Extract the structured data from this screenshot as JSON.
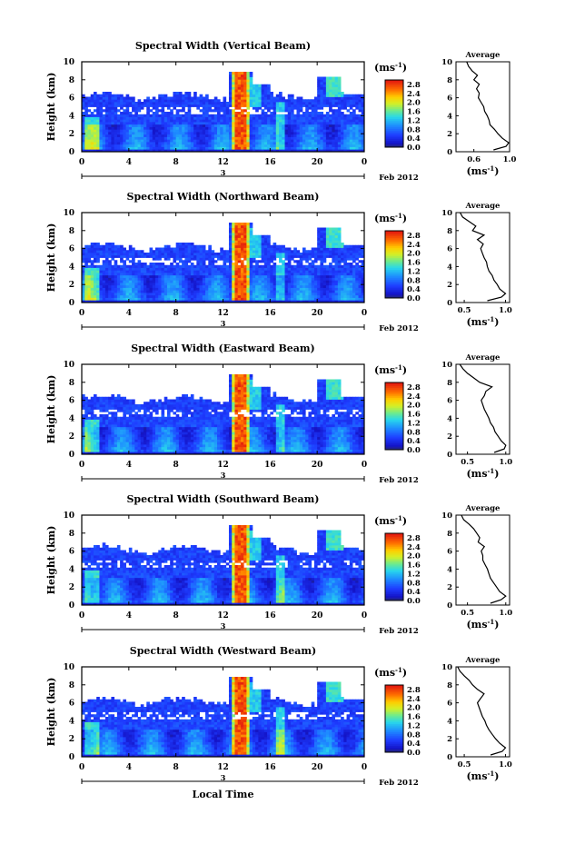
{
  "figure": {
    "xlabel": "Local Time",
    "date_label": "Feb 2012",
    "day_label": "3",
    "ylabel": "Height (km)",
    "colorbar_unit": "(ms",
    "colorbar_unit_exp": "-1",
    "avg_title": "Average",
    "avg_unit": "(ms",
    "avg_unit_exp": "-1",
    "avg_unit_close": ")"
  },
  "chart_data": [
    {
      "type": "heatmap",
      "title": "Spectral Width (Vertical Beam)",
      "ylabel": "Height (km)",
      "x_ticks": [
        "0",
        "4",
        "8",
        "12",
        "16",
        "20",
        "0"
      ],
      "y_ticks": [
        "0",
        "2",
        "4",
        "6",
        "8",
        "10"
      ],
      "ylim": [
        0,
        10
      ],
      "xlim": [
        0,
        24
      ],
      "colorbar_ticks": [
        "0.0",
        "0.4",
        "0.8",
        "1.2",
        "1.6",
        "2.0",
        "2.4",
        "2.8"
      ],
      "colorbar_range": [
        0,
        3.0
      ],
      "profile": {
        "title": "Average",
        "x_ticks": [
          "0.6",
          "1.0"
        ],
        "y_ticks": [
          "0",
          "2",
          "4",
          "6",
          "8",
          "10"
        ],
        "xlim": [
          0.4,
          1.0
        ],
        "height_km": [
          0.2,
          0.6,
          1.0,
          1.5,
          2.0,
          2.5,
          3.0,
          3.5,
          4.0,
          4.5,
          5.0,
          5.5,
          6.0,
          6.5,
          7.0,
          7.5,
          8.0,
          8.5,
          9.0,
          9.5,
          10.0
        ],
        "mean_width": [
          0.82,
          0.96,
          0.99,
          0.92,
          0.87,
          0.83,
          0.78,
          0.77,
          0.75,
          0.72,
          0.71,
          0.68,
          0.65,
          0.66,
          0.63,
          0.66,
          0.6,
          0.64,
          0.58,
          0.54,
          0.52
        ]
      }
    },
    {
      "type": "heatmap",
      "title": "Spectral Width (Northward Beam)",
      "ylabel": "Height (km)",
      "x_ticks": [
        "0",
        "4",
        "8",
        "12",
        "16",
        "20",
        "0"
      ],
      "y_ticks": [
        "0",
        "2",
        "4",
        "6",
        "8",
        "10"
      ],
      "ylim": [
        0,
        10
      ],
      "xlim": [
        0,
        24
      ],
      "colorbar_ticks": [
        "0.0",
        "0.4",
        "0.8",
        "1.2",
        "1.6",
        "2.0",
        "2.4",
        "2.8"
      ],
      "colorbar_range": [
        0,
        3.0
      ],
      "profile": {
        "title": "Average",
        "x_ticks": [
          "0.5",
          "1.0"
        ],
        "y_ticks": [
          "0",
          "2",
          "4",
          "6",
          "8",
          "10"
        ],
        "xlim": [
          0.4,
          1.05
        ],
        "height_km": [
          0.2,
          0.6,
          1.0,
          1.5,
          2.0,
          2.5,
          3.0,
          3.5,
          4.0,
          4.5,
          5.0,
          5.5,
          6.0,
          6.5,
          7.0,
          7.5,
          8.0,
          8.5,
          9.0,
          9.5,
          10.0
        ],
        "mean_width": [
          0.78,
          0.95,
          1.0,
          0.93,
          0.9,
          0.86,
          0.84,
          0.8,
          0.78,
          0.77,
          0.74,
          0.72,
          0.7,
          0.73,
          0.66,
          0.74,
          0.6,
          0.64,
          0.56,
          0.48,
          0.45
        ]
      }
    },
    {
      "type": "heatmap",
      "title": "Spectral Width (Eastward Beam)",
      "ylabel": "Height (km)",
      "x_ticks": [
        "0",
        "4",
        "8",
        "12",
        "16",
        "20",
        "0"
      ],
      "y_ticks": [
        "0",
        "2",
        "4",
        "6",
        "8",
        "10"
      ],
      "ylim": [
        0,
        10
      ],
      "xlim": [
        0,
        24
      ],
      "colorbar_ticks": [
        "0.0",
        "0.4",
        "0.8",
        "1.2",
        "1.6",
        "2.0",
        "2.4",
        "2.8"
      ],
      "colorbar_range": [
        0,
        3.0
      ],
      "profile": {
        "title": "Average",
        "x_ticks": [
          "0.5",
          "1.0"
        ],
        "y_ticks": [
          "0",
          "2",
          "4",
          "6",
          "8",
          "10"
        ],
        "xlim": [
          0.35,
          1.05
        ],
        "height_km": [
          0.2,
          0.6,
          1.0,
          1.5,
          2.0,
          2.5,
          3.0,
          3.5,
          4.0,
          4.5,
          5.0,
          5.5,
          6.0,
          6.5,
          7.0,
          7.5,
          8.0,
          8.5,
          9.0,
          9.5,
          10.0
        ],
        "mean_width": [
          0.85,
          0.98,
          1.0,
          0.94,
          0.9,
          0.86,
          0.84,
          0.8,
          0.78,
          0.75,
          0.72,
          0.7,
          0.68,
          0.72,
          0.74,
          0.82,
          0.66,
          0.58,
          0.5,
          0.44,
          0.4
        ]
      }
    },
    {
      "type": "heatmap",
      "title": "Spectral Width (Southward Beam)",
      "ylabel": "Height (km)",
      "x_ticks": [
        "0",
        "4",
        "8",
        "12",
        "16",
        "20",
        "0"
      ],
      "y_ticks": [
        "0",
        "2",
        "4",
        "6",
        "8",
        "10"
      ],
      "ylim": [
        0,
        10
      ],
      "xlim": [
        0,
        24
      ],
      "colorbar_ticks": [
        "0.0",
        "0.4",
        "0.8",
        "1.2",
        "1.6",
        "2.0",
        "2.4",
        "2.8"
      ],
      "colorbar_range": [
        0,
        3.0
      ],
      "profile": {
        "title": "Average",
        "x_ticks": [
          "0.5",
          "1.0"
        ],
        "y_ticks": [
          "0",
          "2",
          "4",
          "6",
          "8",
          "10"
        ],
        "xlim": [
          0.35,
          1.05
        ],
        "height_km": [
          0.2,
          0.6,
          1.0,
          1.5,
          2.0,
          2.5,
          3.0,
          3.5,
          4.0,
          4.5,
          5.0,
          5.5,
          6.0,
          6.5,
          7.0,
          7.5,
          8.0,
          8.5,
          9.0,
          9.5,
          10.0
        ],
        "mean_width": [
          0.8,
          0.94,
          1.0,
          0.92,
          0.88,
          0.84,
          0.8,
          0.78,
          0.76,
          0.73,
          0.7,
          0.7,
          0.68,
          0.72,
          0.64,
          0.66,
          0.62,
          0.58,
          0.52,
          0.45,
          0.42
        ]
      }
    },
    {
      "type": "heatmap",
      "title": "Spectral Width (Westward Beam)",
      "ylabel": "Height (km)",
      "x_ticks": [
        "0",
        "4",
        "8",
        "12",
        "16",
        "20",
        "0"
      ],
      "y_ticks": [
        "0",
        "2",
        "4",
        "6",
        "8",
        "10"
      ],
      "ylim": [
        0,
        10
      ],
      "xlim": [
        0,
        24
      ],
      "colorbar_ticks": [
        "0.0",
        "0.4",
        "0.8",
        "1.2",
        "1.6",
        "2.0",
        "2.4",
        "2.8"
      ],
      "colorbar_range": [
        0,
        3.0
      ],
      "profile": {
        "title": "Average",
        "x_ticks": [
          "0.5",
          "1.0"
        ],
        "y_ticks": [
          "0",
          "2",
          "4",
          "6",
          "8",
          "10"
        ],
        "xlim": [
          0.4,
          1.05
        ],
        "height_km": [
          0.2,
          0.6,
          1.0,
          1.5,
          2.0,
          2.5,
          3.0,
          3.5,
          4.0,
          4.5,
          5.0,
          5.5,
          6.0,
          6.5,
          7.0,
          7.5,
          8.0,
          8.5,
          9.0,
          9.5,
          10.0
        ],
        "mean_width": [
          0.82,
          0.96,
          1.0,
          0.93,
          0.88,
          0.84,
          0.8,
          0.77,
          0.75,
          0.72,
          0.7,
          0.68,
          0.66,
          0.7,
          0.74,
          0.66,
          0.6,
          0.56,
          0.5,
          0.45,
          0.42
        ]
      }
    }
  ]
}
